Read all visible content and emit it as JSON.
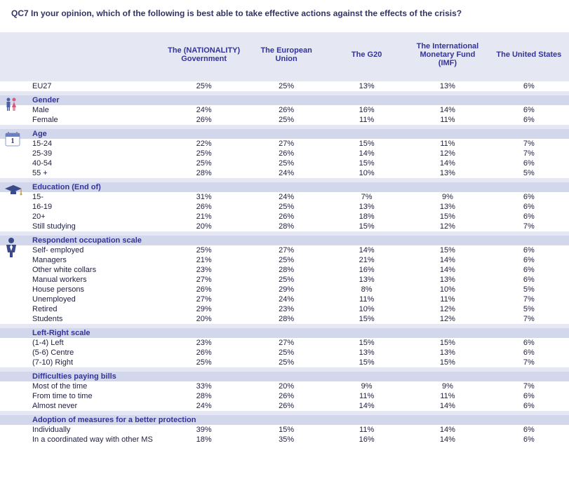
{
  "title": "QC7 In your opinion, which of the following is best able to take effective actions against the effects of the crisis?",
  "columns": [
    "The (NATIONALITY) Government",
    "The European Union",
    "The G20",
    "The International Monetary Fund (IMF)",
    "The United States"
  ],
  "colors": {
    "header_bg": "#e5e8f2",
    "section_bg": "#d2d7eb",
    "text_primary": "#333399",
    "text_body": "#222244"
  },
  "sections": [
    {
      "label": "",
      "icon": "",
      "rows": [
        {
          "label": "EU27",
          "vals": [
            "25%",
            "25%",
            "13%",
            "13%",
            "6%"
          ]
        }
      ]
    },
    {
      "label": "Gender",
      "icon": "gender",
      "rows": [
        {
          "label": "Male",
          "vals": [
            "24%",
            "26%",
            "16%",
            "14%",
            "6%"
          ]
        },
        {
          "label": "Female",
          "vals": [
            "26%",
            "25%",
            "11%",
            "11%",
            "6%"
          ]
        }
      ]
    },
    {
      "label": "Age",
      "icon": "calendar",
      "rows": [
        {
          "label": "15-24",
          "vals": [
            "22%",
            "27%",
            "15%",
            "11%",
            "7%"
          ]
        },
        {
          "label": "25-39",
          "vals": [
            "25%",
            "26%",
            "14%",
            "12%",
            "7%"
          ]
        },
        {
          "label": "40-54",
          "vals": [
            "25%",
            "25%",
            "15%",
            "14%",
            "6%"
          ]
        },
        {
          "label": "55 +",
          "vals": [
            "28%",
            "24%",
            "10%",
            "13%",
            "5%"
          ]
        }
      ]
    },
    {
      "label": "Education (End of)",
      "icon": "grad",
      "rows": [
        {
          "label": "15-",
          "vals": [
            "31%",
            "24%",
            "7%",
            "9%",
            "6%"
          ]
        },
        {
          "label": "16-19",
          "vals": [
            "26%",
            "25%",
            "13%",
            "13%",
            "6%"
          ]
        },
        {
          "label": "20+",
          "vals": [
            "21%",
            "26%",
            "18%",
            "15%",
            "6%"
          ]
        },
        {
          "label": "Still studying",
          "vals": [
            "20%",
            "28%",
            "15%",
            "12%",
            "7%"
          ]
        }
      ]
    },
    {
      "label": "Respondent occupation scale",
      "icon": "person",
      "rows": [
        {
          "label": "Self- employed",
          "vals": [
            "25%",
            "27%",
            "14%",
            "15%",
            "6%"
          ]
        },
        {
          "label": "Managers",
          "vals": [
            "21%",
            "25%",
            "21%",
            "14%",
            "6%"
          ]
        },
        {
          "label": "Other white collars",
          "vals": [
            "23%",
            "28%",
            "16%",
            "14%",
            "6%"
          ]
        },
        {
          "label": "Manual workers",
          "vals": [
            "27%",
            "25%",
            "13%",
            "13%",
            "6%"
          ]
        },
        {
          "label": "House persons",
          "vals": [
            "26%",
            "29%",
            "8%",
            "10%",
            "5%"
          ]
        },
        {
          "label": "Unemployed",
          "vals": [
            "27%",
            "24%",
            "11%",
            "11%",
            "7%"
          ]
        },
        {
          "label": "Retired",
          "vals": [
            "29%",
            "23%",
            "10%",
            "12%",
            "5%"
          ]
        },
        {
          "label": "Students",
          "vals": [
            "20%",
            "28%",
            "15%",
            "12%",
            "7%"
          ]
        }
      ]
    },
    {
      "label": "Left-Right scale",
      "icon": "",
      "rows": [
        {
          "label": "(1-4) Left",
          "vals": [
            "23%",
            "27%",
            "15%",
            "15%",
            "6%"
          ]
        },
        {
          "label": "(5-6) Centre",
          "vals": [
            "26%",
            "25%",
            "13%",
            "13%",
            "6%"
          ]
        },
        {
          "label": "(7-10) Right",
          "vals": [
            "25%",
            "25%",
            "15%",
            "15%",
            "7%"
          ]
        }
      ]
    },
    {
      "label": "Difficulties paying bills",
      "icon": "",
      "rows": [
        {
          "label": "Most of the time",
          "vals": [
            "33%",
            "20%",
            "9%",
            "9%",
            "7%"
          ]
        },
        {
          "label": "From time to time",
          "vals": [
            "28%",
            "26%",
            "11%",
            "11%",
            "6%"
          ]
        },
        {
          "label": "Almost never",
          "vals": [
            "24%",
            "26%",
            "14%",
            "14%",
            "6%"
          ]
        }
      ]
    },
    {
      "label": "Adoption of measures for a better protection",
      "icon": "",
      "rows": [
        {
          "label": "Individually",
          "vals": [
            "39%",
            "15%",
            "11%",
            "14%",
            "6%"
          ]
        },
        {
          "label": "In a coordinated way with other MS",
          "vals": [
            "18%",
            "35%",
            "16%",
            "14%",
            "6%"
          ]
        }
      ]
    }
  ]
}
